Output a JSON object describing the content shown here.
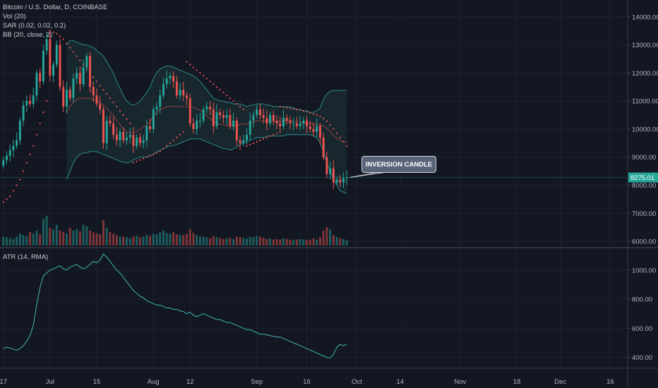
{
  "header": {
    "symbol_line": "Bitcoin / U.S. Dollar, D, COINBASE",
    "indicators": [
      "Vol (20)",
      "SAR (0.02, 0.02, 0.2)",
      "BB (20, close, 2)"
    ]
  },
  "atr_pane": {
    "label": "ATR (14, RMA)"
  },
  "annotation": {
    "text": "INVERSION CANDLE"
  },
  "last_price": {
    "label": "8275.01",
    "value": 8275.01
  },
  "colors": {
    "background": "#131722",
    "up": "#26a69a",
    "down": "#ef5350",
    "bb": "#2a8c8a",
    "bb_fill": "#1b3436",
    "sar": "#ef5350",
    "atr": "#3fb7b0",
    "grid": "#1f2330",
    "axis_text": "#b2b5be"
  },
  "chart_data": [
    {
      "type": "candlestick",
      "title": "Bitcoin / U.S. Dollar, D, COINBASE",
      "ylim": [
        5800,
        14600
      ],
      "y_ticks": [
        6000,
        7000,
        8000,
        9000,
        10000,
        11000,
        12000,
        13000,
        14000
      ],
      "y_tick_labels": [
        "6000.00",
        "7000.00",
        "8000.00",
        "9000.00",
        "10000.00",
        "11000.00",
        "12000.00",
        "13000.00",
        "14000.00"
      ],
      "x_tick_labels": [
        {
          "label": "17",
          "day": 0
        },
        {
          "label": "Jul",
          "day": 14
        },
        {
          "label": "15",
          "day": 28
        },
        {
          "label": "Aug",
          "day": 45
        },
        {
          "label": "12",
          "day": 56
        },
        {
          "label": "Sep",
          "day": 76
        },
        {
          "label": "16",
          "day": 91
        },
        {
          "label": "Oct",
          "day": 106
        },
        {
          "label": "14",
          "day": 119
        },
        {
          "label": "Nov",
          "day": 137
        },
        {
          "label": "18",
          "day": 154
        },
        {
          "label": "Dec",
          "day": 167
        },
        {
          "label": "16",
          "day": 182
        }
      ],
      "x_range_days": [
        -1,
        187
      ],
      "close": [
        8900,
        9050,
        9250,
        9400,
        9600,
        10300,
        10850,
        11000,
        10900,
        11200,
        12000,
        11700,
        12800,
        13200,
        11900,
        12300,
        13000,
        11500,
        10800,
        11400,
        11100,
        11800,
        12000,
        11600,
        12200,
        12600,
        11500,
        11200,
        10900,
        10700,
        9500,
        10300,
        10200,
        9800,
        9600,
        9900,
        9600,
        9700,
        9800,
        9400,
        9700,
        9500,
        9600,
        10100,
        10000,
        10700,
        10800,
        11200,
        11600,
        11800,
        11900,
        11700,
        11200,
        11400,
        11200,
        11100,
        10200,
        10000,
        10300,
        10300,
        10700,
        10800,
        10700,
        10100,
        10600,
        10500,
        10400,
        10500,
        10100,
        10300,
        9600,
        9500,
        9600,
        9800,
        10300,
        10500,
        10700,
        10500,
        10400,
        10200,
        10500,
        10300,
        10200,
        10100,
        10400,
        10300,
        10200,
        10200,
        10100,
        10200,
        10300,
        10100,
        10000,
        9900,
        10100,
        9700,
        9000,
        8400,
        8600,
        8100,
        8200,
        8100,
        8250,
        8275
      ],
      "open": [
        8700,
        8900,
        9050,
        9250,
        9400,
        9600,
        10300,
        10850,
        11000,
        10900,
        11200,
        12000,
        11700,
        12800,
        13200,
        11900,
        12300,
        13000,
        11500,
        10800,
        11400,
        11100,
        11800,
        12000,
        11600,
        12200,
        12600,
        11500,
        11200,
        10900,
        10700,
        9500,
        10300,
        10200,
        9800,
        9600,
        9900,
        9600,
        9700,
        9800,
        9400,
        9700,
        9500,
        9600,
        10100,
        10000,
        10700,
        10800,
        11200,
        11600,
        11800,
        11900,
        11700,
        11200,
        11400,
        11200,
        11100,
        10200,
        10000,
        10300,
        10300,
        10700,
        10800,
        10700,
        10100,
        10600,
        10500,
        10400,
        10500,
        10100,
        10300,
        9600,
        9500,
        9600,
        9800,
        10300,
        10500,
        10700,
        10500,
        10400,
        10200,
        10500,
        10300,
        10200,
        10100,
        10400,
        10300,
        10200,
        10200,
        10100,
        10200,
        10300,
        10100,
        10000,
        9900,
        10100,
        9700,
        9000,
        8400,
        8600,
        8100,
        8200,
        8100,
        8250
      ],
      "volume_ratio": [
        0.3,
        0.28,
        0.25,
        0.22,
        0.3,
        0.4,
        0.35,
        0.32,
        0.45,
        0.4,
        0.5,
        0.38,
        0.9,
        1.0,
        0.6,
        0.55,
        0.7,
        0.5,
        0.45,
        0.4,
        0.6,
        0.5,
        0.55,
        0.48,
        0.7,
        0.65,
        0.5,
        0.45,
        0.4,
        0.38,
        0.85,
        0.6,
        0.45,
        0.4,
        0.35,
        0.3,
        0.3,
        0.28,
        0.25,
        0.3,
        0.33,
        0.28,
        0.3,
        0.35,
        0.32,
        0.4,
        0.38,
        0.45,
        0.5,
        0.42,
        0.4,
        0.45,
        0.38,
        0.36,
        0.35,
        0.4,
        0.55,
        0.42,
        0.35,
        0.3,
        0.3,
        0.28,
        0.25,
        0.32,
        0.28,
        0.25,
        0.22,
        0.24,
        0.26,
        0.22,
        0.3,
        0.28,
        0.25,
        0.24,
        0.3,
        0.28,
        0.32,
        0.3,
        0.26,
        0.22,
        0.24,
        0.2,
        0.22,
        0.2,
        0.24,
        0.22,
        0.2,
        0.18,
        0.2,
        0.22,
        0.2,
        0.18,
        0.2,
        0.24,
        0.2,
        0.28,
        0.5,
        0.62,
        0.55,
        0.35,
        0.3,
        0.25,
        0.22,
        0.18
      ],
      "bb_upper": [
        null,
        null,
        null,
        null,
        null,
        null,
        null,
        null,
        null,
        null,
        null,
        null,
        null,
        null,
        null,
        null,
        null,
        null,
        null,
        13000,
        13150,
        13150,
        13100,
        13050,
        13000,
        13000,
        12950,
        12900,
        12800,
        12700,
        12600,
        12400,
        12200,
        12000,
        11700,
        11450,
        11200,
        11000,
        10900,
        10850,
        10900,
        11000,
        11150,
        11300,
        11500,
        11800,
        12000,
        12150,
        12200,
        12250,
        12250,
        12200,
        12150,
        12100,
        12050,
        12000,
        11950,
        11900,
        11800,
        11700,
        11550,
        11400,
        11250,
        11100,
        11050,
        11000,
        11000,
        10950,
        10950,
        10900,
        10900,
        10900,
        10850,
        10800,
        10850,
        10850,
        10900,
        10900,
        10900,
        10850,
        10850,
        10800,
        10800,
        10800,
        10800,
        10800,
        10800,
        10750,
        10700,
        10700,
        10650,
        10650,
        10600,
        10600,
        10650,
        10750,
        11050,
        11250,
        11350,
        11380,
        11380,
        11380,
        11380,
        11380
      ],
      "bb_lower": [
        null,
        null,
        null,
        null,
        null,
        null,
        null,
        null,
        null,
        null,
        null,
        null,
        null,
        null,
        null,
        null,
        null,
        null,
        null,
        8200,
        8500,
        8800,
        9000,
        9100,
        9150,
        9150,
        9200,
        9200,
        9200,
        9150,
        9100,
        9050,
        9000,
        8950,
        8900,
        8850,
        8820,
        8800,
        8820,
        8900,
        8950,
        9000,
        9000,
        9000,
        9050,
        9100,
        9200,
        9250,
        9300,
        9350,
        9400,
        9400,
        9450,
        9500,
        9550,
        9600,
        9650,
        9650,
        9650,
        9650,
        9600,
        9550,
        9500,
        9450,
        9400,
        9350,
        9300,
        9300,
        9250,
        9300,
        9350,
        9450,
        9500,
        9550,
        9600,
        9650,
        9700,
        9700,
        9700,
        9750,
        9750,
        9750,
        9750,
        9750,
        9750,
        9800,
        9800,
        9800,
        9800,
        9800,
        9800,
        9800,
        9800,
        9750,
        9700,
        9500,
        9200,
        8800,
        8500,
        8200,
        8000,
        7800,
        7750,
        7700
      ],
      "bb_basis": [
        null,
        null,
        null,
        null,
        null,
        null,
        null,
        null,
        null,
        null,
        null,
        null,
        null,
        null,
        null,
        null,
        null,
        null,
        null,
        10600,
        10800,
        10950,
        11050,
        11100,
        11100,
        11100,
        11100,
        11050,
        11000,
        10950,
        10850,
        10750,
        10600,
        10500,
        10300,
        10150,
        10000,
        9900,
        9860,
        9870,
        9920,
        10000,
        10080,
        10150,
        10270,
        10450,
        10600,
        10700,
        10750,
        10800,
        10820,
        10800,
        10800,
        10800,
        10800,
        10800,
        10800,
        10780,
        10720,
        10670,
        10580,
        10470,
        10370,
        10280,
        10220,
        10170,
        10150,
        10120,
        10100,
        10100,
        10120,
        10170,
        10180,
        10170,
        10220,
        10250,
        10300,
        10300,
        10300,
        10300,
        10300,
        10270,
        10270,
        10270,
        10270,
        10300,
        10300,
        10270,
        10250,
        10250,
        10220,
        10220,
        10200,
        10170,
        10170,
        10120,
        10120,
        10020,
        9920,
        9780,
        9680,
        9590,
        9560,
        9540
      ],
      "sar": [
        7400,
        7500,
        7600,
        7800,
        8000,
        8200,
        8500,
        8800,
        9100,
        9400,
        9800,
        10200,
        10600,
        11000,
        13500,
        13450,
        13400,
        13300,
        13200,
        13050,
        12900,
        12750,
        12600,
        12450,
        12300,
        12150,
        12000,
        11850,
        11700,
        11550,
        11400,
        11250,
        11100,
        10950,
        10800,
        10650,
        10500,
        10350,
        10200,
        8800,
        8850,
        8900,
        8950,
        9000,
        9050,
        9100,
        9150,
        9200,
        9300,
        9400,
        9500,
        9600,
        9700,
        9800,
        9900,
        12400,
        12300,
        12200,
        12100,
        12000,
        11900,
        11800,
        11700,
        11600,
        11500,
        11400,
        11300,
        11200,
        11100,
        11000,
        10900,
        10800,
        10700,
        9400,
        9450,
        9500,
        9550,
        9600,
        9650,
        9700,
        9750,
        9800,
        9850,
        10800,
        10780,
        10760,
        10740,
        10720,
        10700,
        10680,
        10650,
        10620,
        10580,
        10540,
        10500,
        10450,
        10380,
        10280,
        10150,
        10000,
        9850,
        9700,
        9550,
        9400
      ],
      "bb_start_day": 19,
      "annotation_day": 103,
      "annotation_price": 8275
    },
    {
      "type": "line",
      "title": "ATR (14, RMA)",
      "ylim": [
        330,
        1150
      ],
      "y_ticks": [
        400,
        600,
        800,
        1000
      ],
      "y_tick_labels": [
        "400.00",
        "600.00",
        "800.00",
        "1000.00"
      ],
      "values": [
        460,
        470,
        465,
        455,
        450,
        460,
        480,
        510,
        550,
        620,
        760,
        880,
        960,
        980,
        1000,
        1010,
        1020,
        1030,
        1010,
        1000,
        1020,
        1030,
        1040,
        1020,
        1010,
        1020,
        1040,
        1060,
        1050,
        1070,
        1110,
        1090,
        1060,
        1030,
        1000,
        980,
        950,
        920,
        890,
        860,
        840,
        820,
        810,
        790,
        780,
        770,
        760,
        760,
        750,
        740,
        740,
        730,
        730,
        720,
        715,
        700,
        710,
        690,
        680,
        690,
        700,
        690,
        680,
        670,
        660,
        660,
        650,
        640,
        640,
        630,
        620,
        610,
        600,
        590,
        590,
        580,
        570,
        560,
        560,
        555,
        550,
        545,
        540,
        540,
        530,
        520,
        510,
        500,
        490,
        480,
        470,
        460,
        450,
        440,
        430,
        420,
        410,
        400,
        395,
        420,
        470,
        490,
        480,
        490
      ]
    }
  ]
}
